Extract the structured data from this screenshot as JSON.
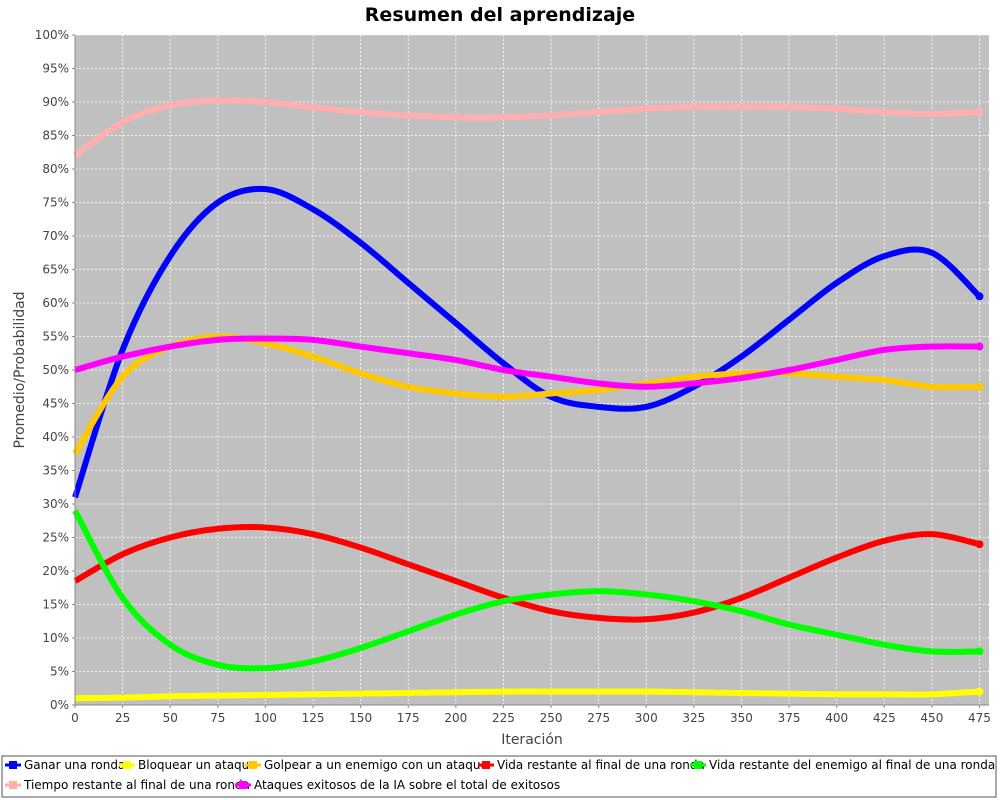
{
  "chart_data": {
    "type": "line",
    "title": "Resumen del aprendizaje",
    "xlabel": "Iteración",
    "ylabel": "Promedio/Probabilidad",
    "xlim": [
      0,
      480
    ],
    "ylim": [
      0,
      100
    ],
    "x_ticks": [
      0,
      25,
      50,
      75,
      100,
      125,
      150,
      175,
      200,
      225,
      250,
      275,
      300,
      325,
      350,
      375,
      400,
      425,
      450,
      475
    ],
    "y_ticks": [
      "0%",
      "5%",
      "10%",
      "15%",
      "20%",
      "25%",
      "30%",
      "35%",
      "40%",
      "45%",
      "50%",
      "55%",
      "60%",
      "65%",
      "70%",
      "75%",
      "80%",
      "85%",
      "90%",
      "95%",
      "100%"
    ],
    "grid": true,
    "plot_background": "#c0c0c0",
    "legend_position": "bottom",
    "x": [
      0,
      25,
      50,
      75,
      100,
      125,
      150,
      175,
      200,
      225,
      250,
      275,
      300,
      325,
      350,
      375,
      400,
      425,
      450,
      475
    ],
    "series": [
      {
        "name": "Ganar una ronda",
        "color": "#0000ff",
        "values": [
          31,
          53,
          67,
          75,
          77,
          74,
          69,
          63,
          57,
          51,
          46,
          44.5,
          44.5,
          47.5,
          52,
          57.5,
          63,
          67,
          67.5,
          61
        ]
      },
      {
        "name": "Bloquear un ataque",
        "color": "#ffff00",
        "values": [
          1,
          1.1,
          1.3,
          1.4,
          1.5,
          1.6,
          1.7,
          1.8,
          1.9,
          2,
          2,
          2,
          2,
          1.9,
          1.8,
          1.7,
          1.6,
          1.6,
          1.6,
          2
        ]
      },
      {
        "name": "Golpear a un enemigo con un ataque",
        "color": "#ffc800",
        "values": [
          37.5,
          49,
          53.5,
          55,
          54,
          52,
          49.5,
          47.5,
          46.5,
          46,
          46.5,
          47,
          48,
          49,
          49.5,
          49.5,
          49,
          48.5,
          47.5,
          47.5
        ]
      },
      {
        "name": "Vida restante al final de una ronda",
        "color": "#ff0000",
        "values": [
          18.5,
          22.5,
          25,
          26.3,
          26.5,
          25.5,
          23.5,
          21,
          18.5,
          16,
          14,
          13,
          12.8,
          13.8,
          16,
          19,
          22,
          24.5,
          25.5,
          24
        ]
      },
      {
        "name": "Vida restante del enemigo al final de una ronda",
        "color": "#00ff00",
        "values": [
          29,
          16,
          9,
          6,
          5.5,
          6.5,
          8.5,
          11,
          13.5,
          15.5,
          16.5,
          17,
          16.5,
          15.5,
          14,
          12,
          10.5,
          9,
          8,
          8
        ]
      },
      {
        "name": "Tiempo restante al final de una ronda",
        "color": "#ffafaf",
        "values": [
          82,
          87,
          89.5,
          90.2,
          90,
          89.2,
          88.5,
          88,
          87.7,
          87.7,
          88,
          88.5,
          89,
          89.3,
          89.3,
          89.3,
          89,
          88.5,
          88.2,
          88.5
        ]
      },
      {
        "name": "Ataques exitosos de la IA sobre el total de exitosos",
        "color": "#ff00ff",
        "values": [
          50,
          52,
          53.5,
          54.5,
          54.7,
          54.5,
          53.5,
          52.5,
          51.5,
          50,
          49,
          48,
          47.5,
          48,
          48.8,
          50,
          51.5,
          53,
          53.5,
          53.5
        ]
      }
    ]
  }
}
